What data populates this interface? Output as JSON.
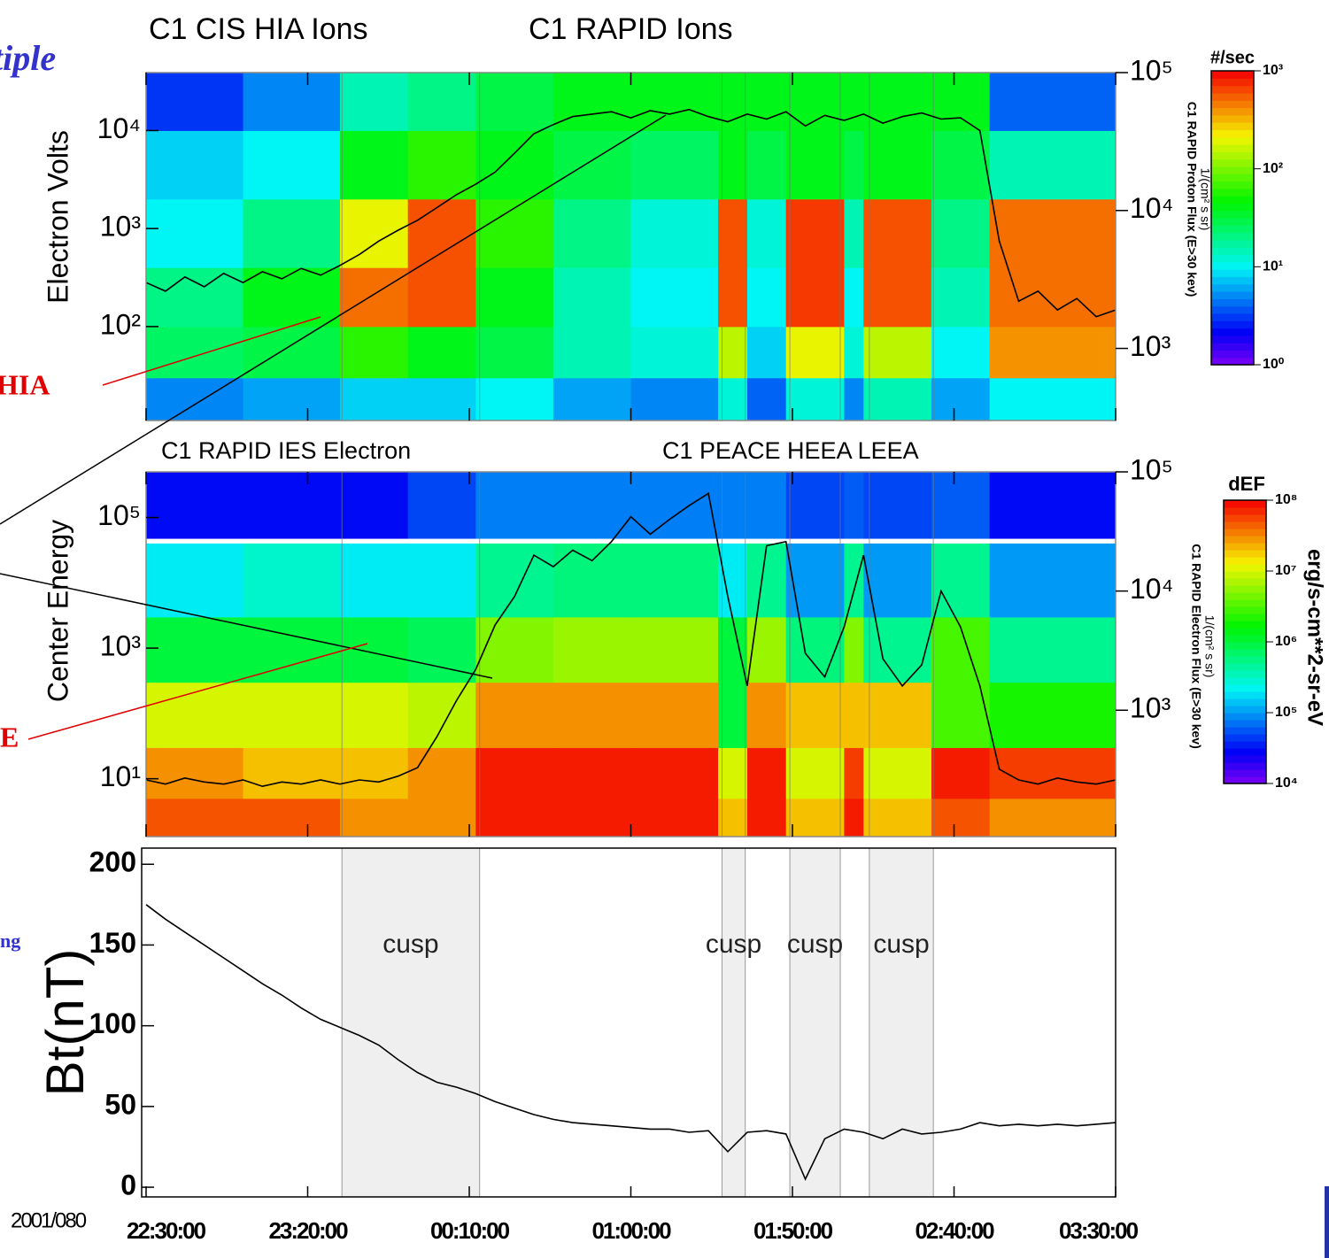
{
  "slide_texts": [
    "tiple",
    "HIA",
    "E",
    "ng"
  ],
  "chart_data": [
    {
      "type": "heatmap",
      "titles": [
        "C1 CIS HIA Ions",
        "C1 RAPID Ions"
      ],
      "ylabel": "Electron Volts",
      "y2label": "C1 RAPID Proton Flux (E>30 kev)",
      "y2sublabel": "1/(cm² s sr)",
      "colorbar_title": "#/sec",
      "log_y": true,
      "xlim": [
        22.5,
        27.5
      ],
      "xticks": [
        22.5,
        23.3333,
        24.1667,
        25,
        25.8333,
        26.6667,
        27.5
      ],
      "ylim": [
        11,
        39000
      ],
      "yticks": [
        {
          "value": 100,
          "label": "10²"
        },
        {
          "value": 1000,
          "label": "10³"
        },
        {
          "value": 10000,
          "label": "10⁴"
        }
      ],
      "y2lim": [
        300,
        100000
      ],
      "y2ticks": [
        {
          "value": 1000,
          "label": "10³"
        },
        {
          "value": 10000,
          "label": "10⁴"
        },
        {
          "value": 100000,
          "label": "10⁵"
        }
      ],
      "zlim": [
        1,
        1000
      ],
      "zticks": [
        {
          "value": 1,
          "label": "10⁰"
        },
        {
          "value": 10,
          "label": "10¹"
        },
        {
          "value": 100,
          "label": "10²"
        },
        {
          "value": 1000,
          "label": "10³"
        }
      ],
      "x_edges": [
        22.5,
        23.0,
        23.5,
        23.85,
        24.2,
        24.6,
        25.0,
        25.45,
        25.6,
        25.8,
        26.1,
        26.2,
        26.55,
        26.85,
        27.5
      ],
      "y_edges": [
        11,
        30,
        100,
        400,
        2000,
        10000,
        39000
      ],
      "z": [
        [
          5,
          6,
          8,
          8,
          10,
          6,
          5,
          12,
          4,
          12,
          5,
          15,
          6,
          10
        ],
        [
          25,
          30,
          60,
          40,
          30,
          15,
          12,
          150,
          8,
          200,
          12,
          150,
          10,
          400
        ],
        [
          20,
          40,
          500,
          600,
          40,
          15,
          10,
          600,
          10,
          700,
          10,
          600,
          15,
          500
        ],
        [
          10,
          20,
          200,
          600,
          60,
          20,
          12,
          600,
          12,
          700,
          15,
          600,
          20,
          500
        ],
        [
          8,
          10,
          40,
          60,
          40,
          30,
          25,
          40,
          30,
          40,
          30,
          40,
          30,
          15
        ],
        [
          3,
          5,
          15,
          20,
          30,
          40,
          40,
          40,
          40,
          40,
          40,
          40,
          40,
          4
        ]
      ],
      "line": {
        "color": "#000000",
        "axis": "y2",
        "x": [
          22.5,
          22.6,
          22.7,
          22.8,
          22.9,
          23.0,
          23.1,
          23.2,
          23.3,
          23.4,
          23.5,
          23.6,
          23.7,
          23.8,
          23.9,
          24.0,
          24.1,
          24.2,
          24.3,
          24.4,
          24.5,
          24.6,
          24.7,
          24.8,
          24.9,
          25.0,
          25.1,
          25.2,
          25.3,
          25.4,
          25.5,
          25.6,
          25.7,
          25.8,
          25.9,
          26.0,
          26.1,
          26.2,
          26.3,
          26.4,
          26.5,
          26.6,
          26.7,
          26.8,
          26.9,
          27.0,
          27.1,
          27.2,
          27.3,
          27.4,
          27.5
        ],
        "values": [
          3000,
          2600,
          3300,
          2800,
          3500,
          3000,
          3600,
          3200,
          3800,
          3400,
          4000,
          4800,
          6000,
          7200,
          8500,
          10500,
          13000,
          15500,
          19000,
          26000,
          36000,
          42000,
          48000,
          50000,
          52000,
          47000,
          53000,
          50000,
          54000,
          48000,
          44000,
          50000,
          46000,
          52000,
          41000,
          49000,
          45000,
          50000,
          43000,
          48000,
          51000,
          46000,
          47000,
          38000,
          6000,
          2200,
          2600,
          1900,
          2300,
          1700,
          1900
        ]
      }
    },
    {
      "type": "heatmap",
      "titles": [
        "C1 RAPID IES Electron",
        "C1 PEACE HEEA  LEEA"
      ],
      "ylabel": "Center Energy",
      "y2label": "C1 RAPID Electron Flux (E>30 kev)",
      "y2sublabel": "1/(cm² s sr)",
      "colorbar_title": "dEF",
      "colorbar_unit": "erg/s-cm**2-sr-eV",
      "log_y": true,
      "xlim": [
        22.5,
        27.5
      ],
      "xticks": [
        22.5,
        23.3333,
        24.1667,
        25,
        25.8333,
        26.6667,
        27.5
      ],
      "ylim": [
        1.3,
        500000
      ],
      "yticks": [
        {
          "value": 10,
          "label": "10¹"
        },
        {
          "value": 1000,
          "label": "10³"
        },
        {
          "value": 100000,
          "label": "10⁵"
        }
      ],
      "y2lim": [
        87,
        100000
      ],
      "y2ticks": [
        {
          "value": 1000,
          "label": "10³"
        },
        {
          "value": 10000,
          "label": "10⁴"
        },
        {
          "value": 100000,
          "label": "10⁵"
        }
      ],
      "zlim": [
        10000,
        100000000
      ],
      "zticks": [
        {
          "value": 10000,
          "label": "10⁴"
        },
        {
          "value": 100000,
          "label": "10⁵"
        },
        {
          "value": 1000000,
          "label": "10⁶"
        },
        {
          "value": 10000000,
          "label": "10⁷"
        },
        {
          "value": 100000000,
          "label": "10⁸"
        }
      ],
      "x_edges": [
        22.5,
        23.0,
        23.5,
        23.85,
        24.2,
        24.6,
        25.0,
        25.45,
        25.6,
        25.8,
        26.1,
        26.2,
        26.55,
        26.85,
        27.5
      ],
      "y_edges": [
        1.3,
        5,
        30,
        300,
        3000,
        40000,
        48000,
        500000
      ],
      "z": [
        [
          50000000,
          50000000,
          30000000,
          30000000,
          80000000,
          80000000,
          80000000,
          20000000,
          80000000,
          20000000,
          80000000,
          20000000,
          50000000,
          30000000
        ],
        [
          30000000,
          20000000,
          20000000,
          30000000,
          80000000,
          80000000,
          80000000,
          10000000,
          80000000,
          10000000,
          60000000,
          10000000,
          80000000,
          60000000
        ],
        [
          10000000,
          10000000,
          10000000,
          8000000,
          30000000,
          30000000,
          30000000,
          1000000,
          30000000,
          20000000,
          20000000,
          20000000,
          3000000,
          2000000
        ],
        [
          1000000,
          1000000,
          1000000,
          800000,
          5000000,
          6000000,
          6000000,
          1000000,
          6000000,
          600000,
          5000000,
          500000,
          3000000,
          500000
        ],
        [
          200000,
          300000,
          200000,
          200000,
          500000,
          600000,
          600000,
          200000,
          500000,
          100000,
          500000,
          100000,
          500000,
          100000
        ],
        [
          null,
          null,
          null,
          null,
          null,
          null,
          null,
          null,
          null,
          null,
          null,
          null,
          null,
          null
        ],
        [
          30000,
          30000,
          30000,
          50000,
          80000,
          80000,
          80000,
          80000,
          80000,
          50000,
          60000,
          50000,
          60000,
          30000
        ]
      ],
      "line": {
        "color": "#000000",
        "axis": "y2",
        "x": [
          22.5,
          22.6,
          22.7,
          22.8,
          22.9,
          23.0,
          23.1,
          23.2,
          23.3,
          23.4,
          23.5,
          23.6,
          23.7,
          23.8,
          23.9,
          24.0,
          24.1,
          24.2,
          24.3,
          24.4,
          24.5,
          24.6,
          24.7,
          24.8,
          24.9,
          25.0,
          25.1,
          25.2,
          25.3,
          25.4,
          25.5,
          25.6,
          25.7,
          25.8,
          25.9,
          26.0,
          26.1,
          26.2,
          26.3,
          26.4,
          26.5,
          26.6,
          26.7,
          26.8,
          26.9,
          27.0,
          27.1,
          27.2,
          27.3,
          27.4,
          27.5
        ],
        "values": [
          260,
          240,
          270,
          250,
          240,
          260,
          230,
          250,
          240,
          260,
          240,
          260,
          250,
          280,
          330,
          600,
          1200,
          2200,
          5200,
          9000,
          20000,
          16000,
          22000,
          18000,
          26000,
          42000,
          30000,
          40000,
          52000,
          66000,
          9000,
          1600,
          24000,
          26000,
          3000,
          1900,
          5000,
          20000,
          2700,
          1600,
          2400,
          10000,
          5000,
          1600,
          320,
          260,
          240,
          270,
          250,
          240,
          260
        ]
      }
    },
    {
      "type": "line",
      "ylabel": "Bt(nT)",
      "date_label": "2001/080",
      "color": "#000000",
      "xlim": [
        22.5,
        27.5
      ],
      "xticks": [
        {
          "value": 22.5,
          "label": "22:30:00"
        },
        {
          "value": 23.3333,
          "label": "23:20:00"
        },
        {
          "value": 24.1667,
          "label": "00:10:00"
        },
        {
          "value": 25,
          "label": "01:00:00"
        },
        {
          "value": 25.8333,
          "label": "01:50:00"
        },
        {
          "value": 26.6667,
          "label": "02:40:00"
        },
        {
          "value": 27.5,
          "label": "03:30:00"
        }
      ],
      "ylim": [
        -6,
        210
      ],
      "yticks": [
        0,
        50,
        100,
        150,
        200
      ],
      "shaded": [
        {
          "x0": 23.51,
          "x1": 24.22,
          "label": "cusp"
        },
        {
          "x0": 25.47,
          "x1": 25.59,
          "label": "cusp"
        },
        {
          "x0": 25.82,
          "x1": 26.08,
          "label": "cusp"
        },
        {
          "x0": 26.23,
          "x1": 26.56,
          "label": "cusp"
        }
      ],
      "x": [
        22.5,
        22.6,
        22.7,
        22.8,
        22.9,
        23.0,
        23.1,
        23.2,
        23.3,
        23.4,
        23.5,
        23.6,
        23.7,
        23.8,
        23.9,
        24.0,
        24.1,
        24.2,
        24.3,
        24.4,
        24.5,
        24.6,
        24.7,
        24.8,
        24.9,
        25.0,
        25.1,
        25.2,
        25.3,
        25.4,
        25.5,
        25.6,
        25.7,
        25.8,
        25.9,
        26.0,
        26.1,
        26.2,
        26.3,
        26.4,
        26.5,
        26.6,
        26.7,
        26.8,
        26.9,
        27.0,
        27.1,
        27.2,
        27.3,
        27.4,
        27.5
      ],
      "values": [
        175,
        166,
        158,
        150,
        142,
        134,
        126,
        119,
        111,
        104,
        99,
        94,
        88,
        79,
        71,
        65,
        62,
        58,
        53,
        49,
        45,
        42,
        40,
        39,
        38,
        37,
        36,
        36,
        34,
        35,
        22,
        34,
        35,
        33,
        5,
        30,
        36,
        34,
        30,
        36,
        33,
        34,
        36,
        40,
        38,
        39,
        38,
        39,
        38,
        39,
        40
      ]
    }
  ]
}
